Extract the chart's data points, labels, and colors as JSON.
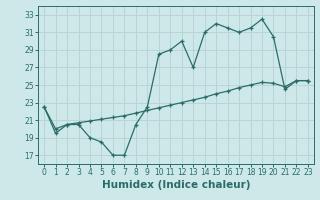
{
  "xlabel": "Humidex (Indice chaleur)",
  "bg_color": "#cce8e8",
  "line_color": "#2d6b6b",
  "grid_color": "#b8d4d4",
  "xlim": [
    -0.5,
    23.5
  ],
  "ylim": [
    16,
    34
  ],
  "xticks": [
    0,
    1,
    2,
    3,
    4,
    5,
    6,
    7,
    8,
    9,
    10,
    11,
    12,
    13,
    14,
    15,
    16,
    17,
    18,
    19,
    20,
    21,
    22,
    23
  ],
  "yticks": [
    17,
    19,
    21,
    23,
    25,
    27,
    29,
    31,
    33
  ],
  "line1_x": [
    0,
    1,
    2,
    3,
    4,
    5,
    6,
    7,
    8,
    9,
    10,
    11,
    12,
    13,
    14,
    15,
    16,
    17,
    18,
    19,
    20,
    21,
    22,
    23
  ],
  "line1_y": [
    22.5,
    19.5,
    20.5,
    20.5,
    19.0,
    18.5,
    17.0,
    17.0,
    20.5,
    22.5,
    28.5,
    29.0,
    30.0,
    27.0,
    31.0,
    32.0,
    31.5,
    31.0,
    31.5,
    32.5,
    30.5,
    24.5,
    25.5,
    25.5
  ],
  "line2_x": [
    0,
    1,
    2,
    3,
    4,
    5,
    6,
    7,
    8,
    9,
    10,
    11,
    12,
    13,
    14,
    15,
    16,
    17,
    18,
    19,
    20,
    21,
    22,
    23
  ],
  "line2_y": [
    22.5,
    20.0,
    20.5,
    20.7,
    20.9,
    21.1,
    21.3,
    21.5,
    21.8,
    22.1,
    22.4,
    22.7,
    23.0,
    23.3,
    23.6,
    24.0,
    24.3,
    24.7,
    25.0,
    25.3,
    25.2,
    24.8,
    25.5,
    25.5
  ],
  "font_color": "#2d6b6b",
  "tick_fontsize": 5.5,
  "xlabel_fontsize": 7.5,
  "marker": "+"
}
